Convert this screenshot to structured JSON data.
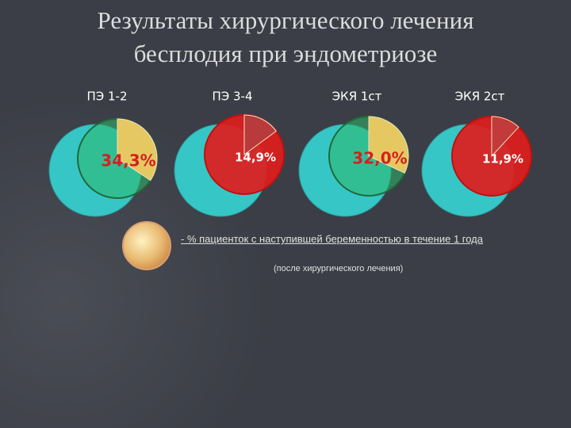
{
  "title": [
    "Результаты хирургического лечения",
    "бесплодия при эндометриозе"
  ],
  "chart_data": [
    {
      "type": "pie",
      "title": "ПЭ 1-2",
      "values": [
        34.3
      ],
      "value_labels": [
        "34,3%"
      ],
      "color": "#2fb86a",
      "wedge_color": "#e6c862",
      "label_color": "#d42020"
    },
    {
      "type": "pie",
      "title": "ПЭ 3-4",
      "values": [
        14.9
      ],
      "value_labels": [
        "14,9%"
      ],
      "color": "#e01c1c",
      "wedge_color": "#b83a3a",
      "label_color": "#ffffff"
    },
    {
      "type": "pie",
      "title": "ЭКЯ 1ст",
      "values": [
        32.0
      ],
      "value_labels": [
        "32,0%"
      ],
      "color": "#2fb86a",
      "wedge_color": "#e6c862",
      "label_color": "#d42020"
    },
    {
      "type": "pie",
      "title": "ЭКЯ 2ст",
      "values": [
        11.9
      ],
      "value_labels": [
        "11,9%"
      ],
      "color": "#e01c1c",
      "wedge_color": "#c23a3a",
      "label_color": "#ffffff"
    }
  ],
  "legend": {
    "text": "- %  пациенток с наступившей беременностью в течение 1 года",
    "note": "(после хирургического лечения)"
  }
}
